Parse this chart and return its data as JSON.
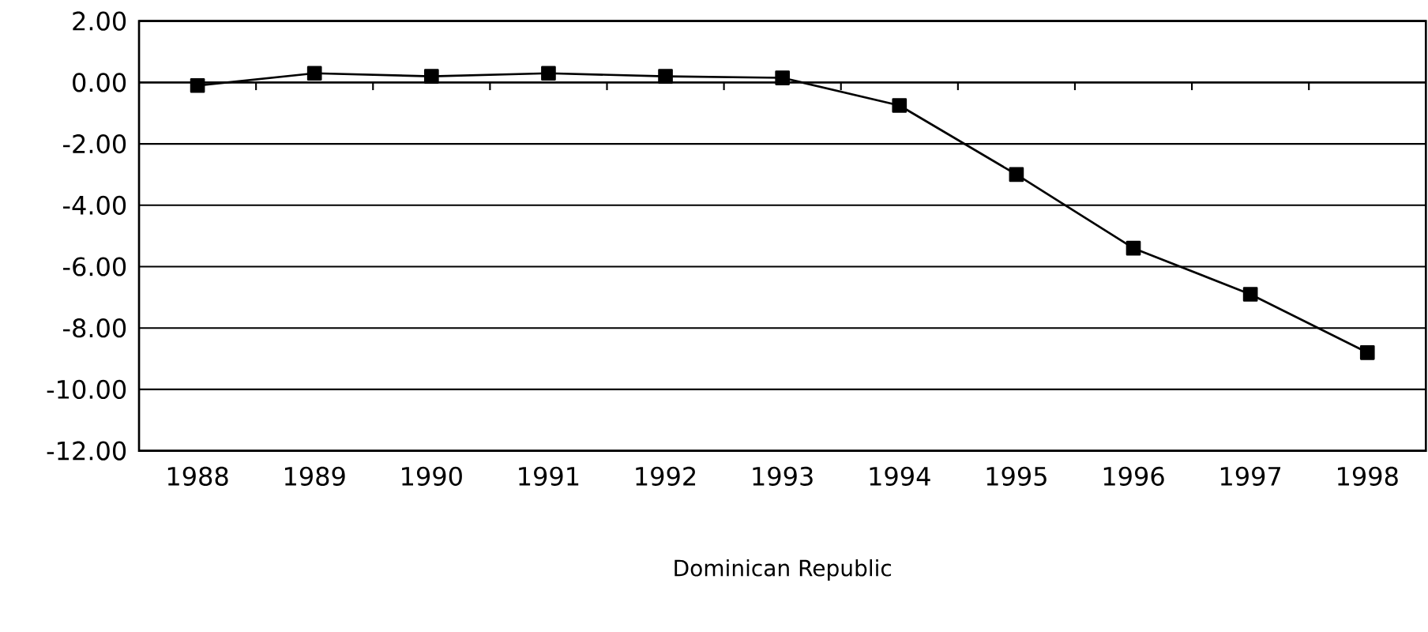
{
  "chart_data": {
    "type": "line",
    "xlabel": "Dominican Republic",
    "categories": [
      "1988",
      "1989",
      "1990",
      "1991",
      "1992",
      "1993",
      "1994",
      "1995",
      "1996",
      "1997",
      "1998"
    ],
    "series": [
      {
        "color": "#000000",
        "values": [
          -0.1,
          0.3,
          0.2,
          0.3,
          0.2,
          0.15,
          -0.75,
          -3.0,
          -5.4,
          -6.9,
          -8.8
        ]
      }
    ],
    "ylim": [
      -12,
      2
    ],
    "yticks": [
      {
        "value": 2,
        "label": "2.00"
      },
      {
        "value": 0,
        "label": "0.00"
      },
      {
        "value": -2,
        "label": "-2.00"
      },
      {
        "value": -4,
        "label": "-4.00"
      },
      {
        "value": -6,
        "label": "-6.00"
      },
      {
        "value": -8,
        "label": "-8.00"
      },
      {
        "value": -10,
        "label": "-10.00"
      },
      {
        "value": -12,
        "label": "-12.00"
      }
    ],
    "grid": "y",
    "marker": "square",
    "line_style": "solid"
  }
}
